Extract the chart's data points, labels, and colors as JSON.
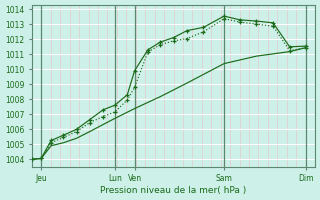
{
  "title": "Pression niveau de la mer( hPa )",
  "ylim": [
    1003.5,
    1014.3
  ],
  "xlim": [
    0.0,
    8.55
  ],
  "xtick_positions": [
    0.28,
    2.5,
    3.1,
    5.8,
    8.28
  ],
  "xtick_labels": [
    "Jeu",
    "Lun",
    "Ven",
    "Sam",
    "Dim"
  ],
  "vline_x": [
    0.28,
    2.5,
    3.1,
    5.8,
    8.28
  ],
  "line_color": "#1a6b1a",
  "bg_color": "#cdf0e8",
  "grid_color_h": "#ffffff",
  "grid_color_v": "#e8c8cc",
  "vline_color": "#5a8870",
  "line1_x": [
    0.0,
    0.28,
    0.58,
    0.95,
    1.35,
    1.75,
    2.15,
    2.5,
    2.88,
    3.1,
    3.5,
    3.88,
    4.28,
    4.68,
    5.18,
    5.8,
    6.28,
    6.78,
    7.28,
    7.78,
    8.28
  ],
  "line1_y": [
    1004.0,
    1004.05,
    1005.25,
    1005.6,
    1006.0,
    1006.65,
    1007.3,
    1007.6,
    1008.3,
    1009.9,
    1011.3,
    1011.82,
    1012.12,
    1012.58,
    1012.8,
    1013.55,
    1013.3,
    1013.22,
    1013.1,
    1011.5,
    1011.55
  ],
  "line2_x": [
    0.0,
    0.28,
    0.58,
    0.95,
    1.35,
    1.75,
    2.15,
    2.5,
    2.88,
    3.1,
    3.5,
    3.88,
    4.28,
    4.68,
    5.18,
    5.8,
    6.28,
    6.78,
    7.28,
    7.78,
    8.28
  ],
  "line2_y": [
    1004.0,
    1004.05,
    1005.1,
    1005.45,
    1005.85,
    1006.45,
    1006.85,
    1007.15,
    1007.95,
    1008.8,
    1011.15,
    1011.65,
    1011.9,
    1012.05,
    1012.5,
    1013.38,
    1013.15,
    1013.02,
    1012.88,
    1011.25,
    1011.45
  ],
  "line3_x": [
    0.0,
    0.28,
    0.58,
    0.95,
    1.35,
    1.75,
    2.5,
    3.1,
    3.88,
    4.68,
    5.8,
    6.78,
    7.78,
    8.28
  ],
  "line3_y": [
    1004.0,
    1004.05,
    1004.9,
    1005.1,
    1005.4,
    1005.85,
    1006.72,
    1007.38,
    1008.18,
    1009.08,
    1010.38,
    1010.88,
    1011.18,
    1011.45
  ],
  "yticks": [
    1004,
    1005,
    1006,
    1007,
    1008,
    1009,
    1010,
    1011,
    1012,
    1013,
    1014
  ]
}
